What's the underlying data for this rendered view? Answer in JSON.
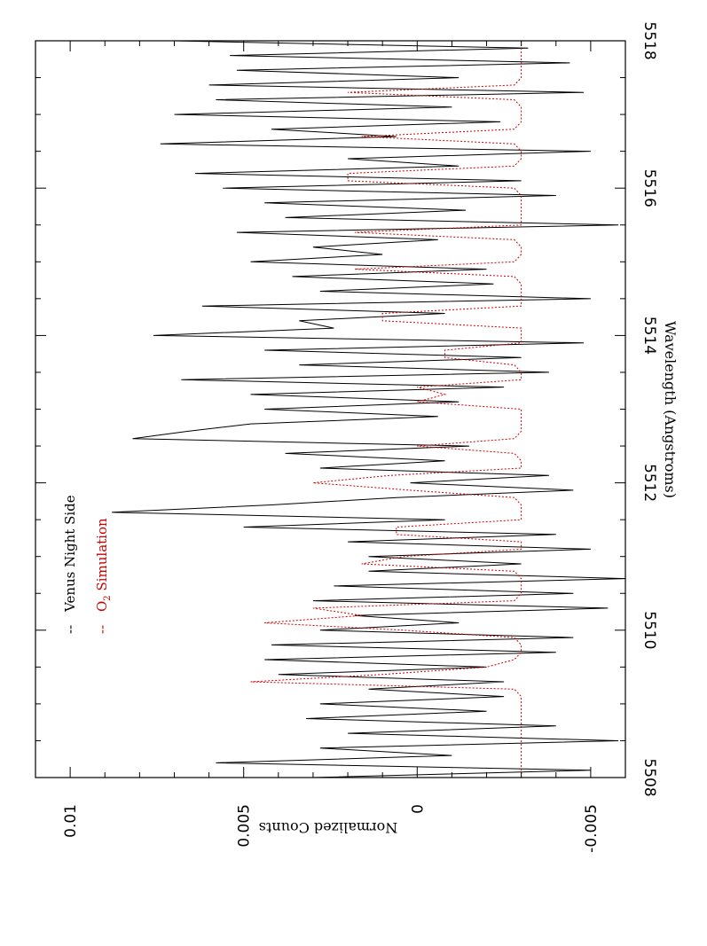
{
  "chart_data": {
    "type": "line",
    "title": "",
    "xlabel": "Wavelength (Angstroms)",
    "ylabel": "Normalized Counts",
    "xlim": [
      5508,
      5518
    ],
    "ylim": [
      -0.006,
      0.011
    ],
    "orientation": "rotated-90-clockwise",
    "x_ticks": [
      5508,
      5510,
      5512,
      5514,
      5516,
      5518
    ],
    "x_tick_labels": [
      "5508",
      "5510",
      "5512",
      "5514",
      "5516",
      "5518"
    ],
    "y_ticks": [
      0.01,
      0.005,
      0,
      -0.005
    ],
    "y_tick_labels": [
      "0.01",
      "0.005",
      "0",
      "-0.005"
    ],
    "grid": false,
    "legend": {
      "placement": "top-left",
      "entries": [
        {
          "prefix": "--",
          "label": "Venus Night Side",
          "color": "#000000"
        },
        {
          "prefix": "--",
          "label_main": "O",
          "label_sub": "2",
          "label_rest": " Simulation",
          "color": "#cc0000"
        }
      ]
    },
    "series": [
      {
        "name": "Venus Night Side",
        "color": "#000000",
        "style": "solid",
        "x": [
          5508.0,
          5508.1,
          5508.2,
          5508.3,
          5508.4,
          5508.5,
          5508.6,
          5508.7,
          5508.8,
          5508.9,
          5509.0,
          5509.1,
          5509.2,
          5509.3,
          5509.4,
          5509.5,
          5509.6,
          5509.7,
          5509.8,
          5509.9,
          5510.0,
          5510.1,
          5510.2,
          5510.3,
          5510.4,
          5510.5,
          5510.6,
          5510.7,
          5510.8,
          5510.9,
          5511.0,
          5511.1,
          5511.2,
          5511.3,
          5511.4,
          5511.5,
          5511.6,
          5511.7,
          5511.8,
          5511.9,
          5512.0,
          5512.1,
          5512.2,
          5512.3,
          5512.4,
          5512.5,
          5512.6,
          5512.7,
          5512.8,
          5512.9,
          5513.0,
          5513.1,
          5513.2,
          5513.3,
          5513.4,
          5513.5,
          5513.6,
          5513.7,
          5513.8,
          5513.9,
          5514.0,
          5514.1,
          5514.2,
          5514.3,
          5514.4,
          5514.5,
          5514.6,
          5514.7,
          5514.8,
          5514.9,
          5515.0,
          5515.1,
          5515.2,
          5515.3,
          5515.4,
          5515.5,
          5515.6,
          5515.7,
          5515.8,
          5515.9,
          5516.0,
          5516.1,
          5516.2,
          5516.3,
          5516.4,
          5516.5,
          5516.6,
          5516.7,
          5516.8,
          5516.9,
          5517.0,
          5517.1,
          5517.2,
          5517.3,
          5517.4,
          5517.5,
          5517.6,
          5517.7,
          5517.8,
          5517.9,
          5518.0
        ],
        "y": [
          0.003,
          -0.005,
          0.0058,
          -0.001,
          0.0028,
          -0.0058,
          0.002,
          -0.004,
          0.0032,
          -0.002,
          0.0028,
          -0.0025,
          0.0014,
          -0.0025,
          0.004,
          -0.002,
          0.0044,
          -0.004,
          0.0042,
          -0.0045,
          0.0028,
          -0.0012,
          0.0018,
          -0.0055,
          0.003,
          -0.0045,
          0.0024,
          -0.006,
          0.0014,
          -0.003,
          0.0014,
          -0.005,
          0.002,
          -0.004,
          0.005,
          -0.0008,
          0.0088,
          0.0042,
          0.0006,
          -0.0045,
          0.0002,
          -0.0038,
          0.0028,
          -0.0008,
          0.0038,
          -0.0015,
          0.0082,
          0.0066,
          0.0048,
          -0.0006,
          0.0044,
          -0.0012,
          0.0048,
          -0.0025,
          0.0068,
          -0.0038,
          0.0034,
          -0.003,
          0.0044,
          -0.0048,
          0.0076,
          0.0024,
          0.0034,
          -0.0008,
          0.0062,
          -0.005,
          0.0028,
          -0.0022,
          0.0036,
          -0.002,
          0.0048,
          0.001,
          0.003,
          -0.0006,
          0.0052,
          -0.0058,
          0.0038,
          -0.0014,
          0.0044,
          -0.004,
          0.0056,
          -0.003,
          0.0064,
          -0.0012,
          0.002,
          -0.005,
          0.0074,
          0.0006,
          0.0042,
          -0.0024,
          0.007,
          -0.001,
          0.0058,
          -0.0048,
          0.006,
          -0.0012,
          0.0052,
          -0.0044,
          0.0054,
          -0.0032,
          0.007
        ]
      },
      {
        "name": "O2 Simulation",
        "color": "#cc0000",
        "style": "dotted",
        "x": [
          5508.0,
          5509.1,
          5509.2,
          5509.3,
          5509.4,
          5509.5,
          5509.6,
          5509.7,
          5509.8,
          5509.9,
          5510.0,
          5510.1,
          5510.2,
          5510.3,
          5510.4,
          5510.5,
          5510.6,
          5510.7,
          5510.8,
          5510.9,
          5511.0,
          5511.1,
          5511.2,
          5511.3,
          5511.4,
          5511.5,
          5511.6,
          5511.7,
          5511.8,
          5511.9,
          5512.0,
          5512.1,
          5512.2,
          5512.3,
          5512.4,
          5512.5,
          5512.6,
          5512.7,
          5512.8,
          5512.9,
          5513.0,
          5513.1,
          5513.2,
          5513.3,
          5513.4,
          5513.5,
          5513.6,
          5513.7,
          5513.8,
          5513.9,
          5514.0,
          5514.1,
          5514.2,
          5514.3,
          5514.4,
          5514.5,
          5514.6,
          5514.7,
          5514.8,
          5514.9,
          5515.0,
          5515.1,
          5515.2,
          5515.3,
          5515.4,
          5515.5,
          5515.6,
          5515.7,
          5515.8,
          5515.9,
          5516.0,
          5516.1,
          5516.2,
          5516.3,
          5516.4,
          5516.5,
          5516.6,
          5516.7,
          5516.8,
          5516.9,
          5517.0,
          5517.1,
          5517.2,
          5517.3,
          5517.4,
          5517.5,
          5517.6,
          5517.7,
          5517.8,
          5517.9,
          5518.0
        ],
        "y": [
          -0.003,
          -0.003,
          -0.0028,
          0.0048,
          0.001,
          -0.002,
          -0.0028,
          -0.003,
          -0.003,
          -0.0028,
          0.0004,
          0.0044,
          0.0016,
          0.003,
          -0.0028,
          -0.003,
          -0.003,
          -0.003,
          -0.0028,
          0.0016,
          0.0004,
          -0.003,
          -0.003,
          0.0006,
          0.0006,
          -0.003,
          -0.003,
          -0.003,
          -0.0028,
          0.0002,
          0.003,
          0.0008,
          -0.003,
          -0.003,
          -0.0028,
          0.0,
          -0.0028,
          -0.003,
          -0.003,
          -0.003,
          -0.003,
          0.0,
          -0.0008,
          0.0,
          -0.003,
          -0.003,
          -0.0028,
          -0.0008,
          -0.0008,
          -0.003,
          -0.003,
          -0.003,
          0.001,
          0.001,
          -0.003,
          -0.003,
          -0.003,
          -0.003,
          -0.0028,
          0.0018,
          -0.0028,
          -0.003,
          -0.003,
          -0.0028,
          0.0018,
          -0.003,
          -0.003,
          -0.003,
          -0.003,
          -0.003,
          -0.0028,
          0.002,
          0.002,
          -0.0028,
          -0.003,
          -0.003,
          -0.0028,
          0.0016,
          -0.0028,
          -0.003,
          -0.003,
          -0.003,
          -0.0028,
          0.002,
          -0.0028,
          -0.003,
          -0.003,
          -0.003,
          -0.003,
          -0.003,
          -0.003
        ]
      }
    ]
  }
}
